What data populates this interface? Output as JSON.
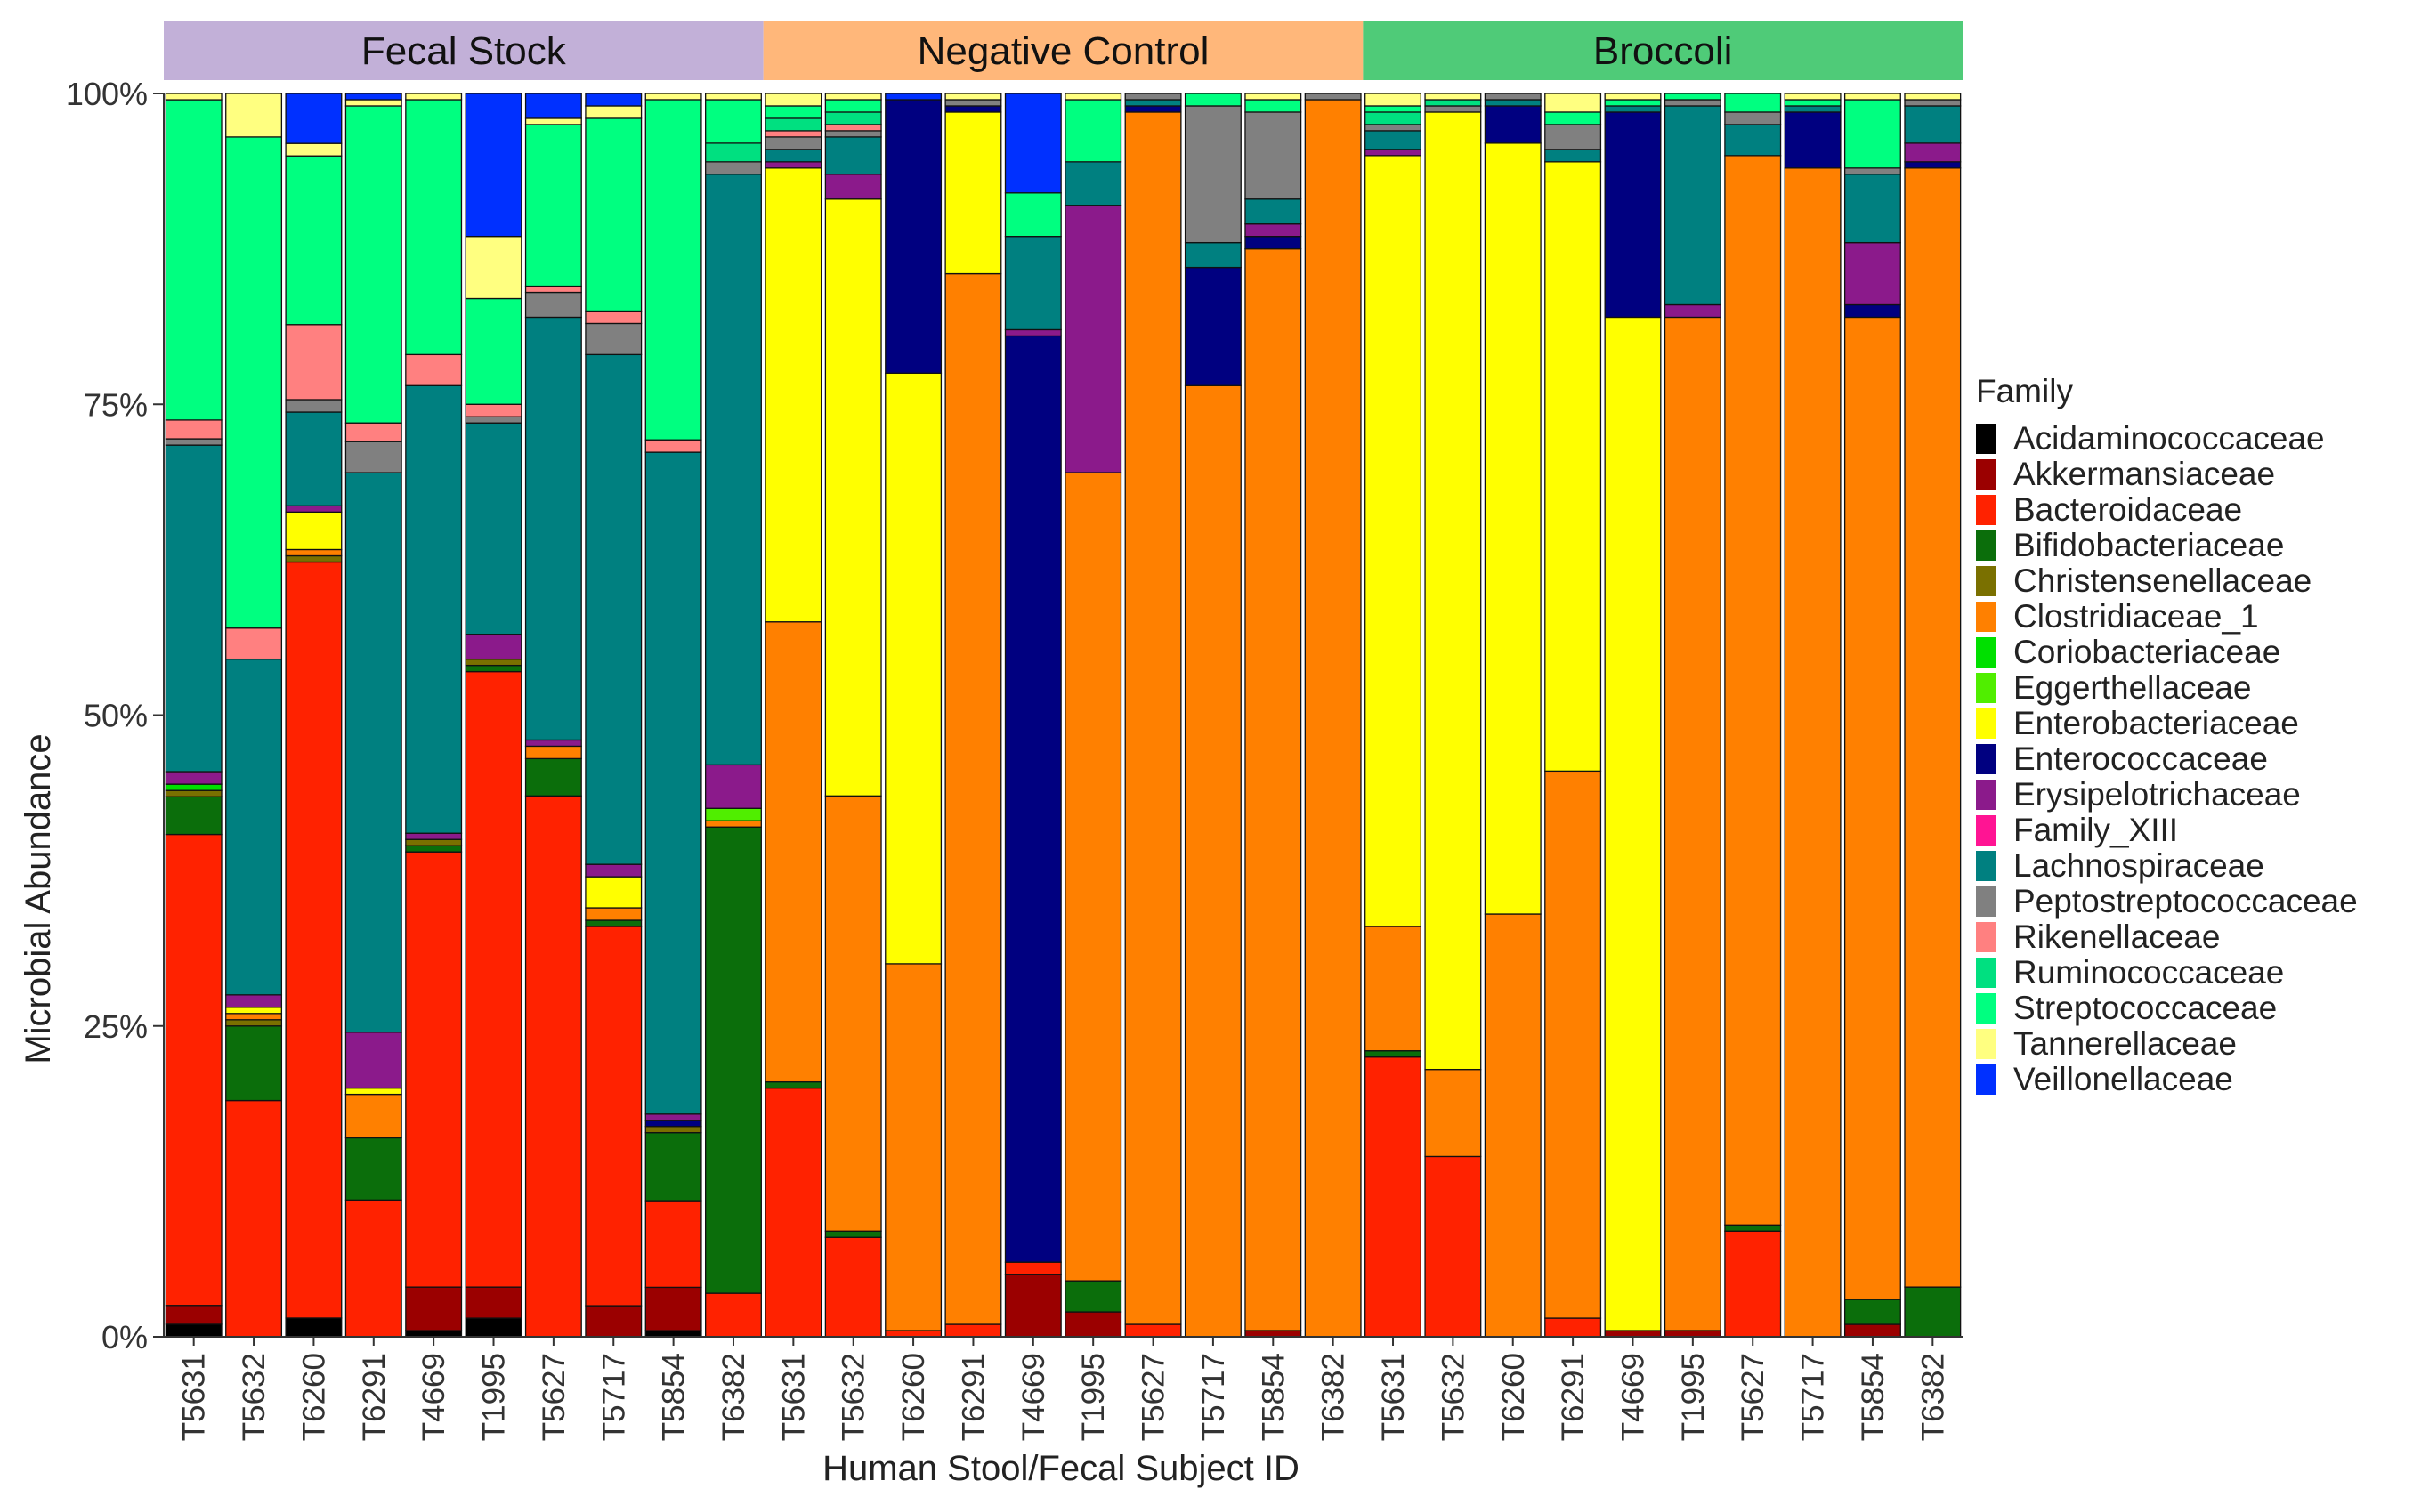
{
  "chart_data": {
    "type": "bar",
    "stacked": true,
    "normalized": true,
    "ylabel": "Microbial Abundance",
    "xlabel": "Human Stool/Fecal Subject ID",
    "yticks": [
      "0%",
      "25%",
      "50%",
      "75%",
      "100%"
    ],
    "ylim": [
      0,
      100
    ],
    "legend_title": "Family",
    "legend_position": "right",
    "families": [
      {
        "name": "Acidaminococcaceae",
        "color": "#000000"
      },
      {
        "name": "Akkermansiaceae",
        "color": "#9b0000"
      },
      {
        "name": "Bacteroidaceae",
        "color": "#ff2200"
      },
      {
        "name": "Bifidobacteriaceae",
        "color": "#0b6e0b"
      },
      {
        "name": "Christensenellaceae",
        "color": "#7a7000"
      },
      {
        "name": "Clostridiaceae_1",
        "color": "#ff8000"
      },
      {
        "name": "Coriobacteriaceae",
        "color": "#00e000"
      },
      {
        "name": "Eggerthellaceae",
        "color": "#50ee00"
      },
      {
        "name": "Enterobacteriaceae",
        "color": "#ffff00"
      },
      {
        "name": "Enterococcaceae",
        "color": "#000080"
      },
      {
        "name": "Erysipelotrichaceae",
        "color": "#8b1a8b"
      },
      {
        "name": "Family_XIII",
        "color": "#ff1493"
      },
      {
        "name": "Lachnospiraceae",
        "color": "#008080"
      },
      {
        "name": "Peptostreptococcaceae",
        "color": "#808080"
      },
      {
        "name": "Rikenellaceae",
        "color": "#ff8080"
      },
      {
        "name": "Ruminococcaceae",
        "color": "#00e080"
      },
      {
        "name": "Streptococcaceae",
        "color": "#00ff80"
      },
      {
        "name": "Tannerellaceae",
        "color": "#ffff80"
      },
      {
        "name": "Veillonellaceae",
        "color": "#0030ff"
      }
    ],
    "groups": [
      {
        "label": "Fecal Stock",
        "color": "#c2b0d8",
        "bars": [
          {
            "id": "T5631",
            "values": [
              1,
              1.5,
              37.5,
              3,
              0.5,
              0,
              0.5,
              0,
              0,
              0,
              1,
              0,
              26,
              0.5,
              1.5,
              0,
              25.5,
              0.5,
              0
            ]
          },
          {
            "id": "T5632",
            "values": [
              0,
              0,
              19,
              6,
              0.5,
              0.5,
              0,
              0,
              0.5,
              0,
              1,
              0,
              27,
              0,
              2.5,
              0,
              39.5,
              3.5,
              0
            ]
          },
          {
            "id": "T6260",
            "values": [
              1.5,
              0,
              60.5,
              0,
              0.5,
              0.5,
              0,
              0,
              3,
              0,
              0.5,
              0,
              7.5,
              1,
              6,
              0,
              13.5,
              1,
              4
            ]
          },
          {
            "id": "T6291",
            "values": [
              0,
              0,
              11,
              5,
              0,
              3.5,
              0,
              0,
              0.5,
              0,
              4.5,
              0,
              45,
              2.5,
              1.5,
              0,
              25.5,
              0.5,
              0.5
            ]
          },
          {
            "id": "T4669",
            "values": [
              0.5,
              3.5,
              35,
              0.5,
              0.5,
              0,
              0,
              0,
              0,
              0,
              0.5,
              0,
              36,
              0,
              2.5,
              0,
              20.5,
              0.5,
              0
            ]
          },
          {
            "id": "T1995",
            "values": [
              1.5,
              2.5,
              49.5,
              0.5,
              0.5,
              0,
              0,
              0,
              0,
              0,
              2,
              0,
              17,
              0.5,
              1,
              0,
              8.5,
              5,
              11.5
            ]
          },
          {
            "id": "T5627",
            "values": [
              0,
              0,
              43.5,
              3,
              0,
              1,
              0,
              0,
              0,
              0,
              0.5,
              0,
              34,
              2,
              0.5,
              0,
              13,
              0.5,
              2
            ]
          },
          {
            "id": "T5717",
            "values": [
              0,
              2.5,
              30.5,
              0.5,
              0,
              1,
              0,
              0,
              2.5,
              0,
              1,
              0,
              41,
              2.5,
              1,
              0,
              15.5,
              1,
              1
            ]
          },
          {
            "id": "T5854",
            "values": [
              0.5,
              3.5,
              7,
              5.5,
              0.5,
              0,
              0,
              0,
              0,
              0.5,
              0.5,
              0,
              53.5,
              0,
              1,
              0,
              27.5,
              0.5,
              0
            ]
          },
          {
            "id": "T6382",
            "values": [
              0,
              0,
              3.5,
              37.5,
              0,
              0.5,
              0,
              1,
              0,
              0,
              3.5,
              0,
              47.5,
              1,
              0,
              1.5,
              3.5,
              0.5,
              0
            ]
          }
        ]
      },
      {
        "label": "Negative Control",
        "color": "#ffb77a",
        "bars": [
          {
            "id": "T5631",
            "values": [
              0,
              0,
              20,
              0.5,
              0,
              37,
              0,
              0,
              36.5,
              0,
              0.5,
              0,
              1,
              1,
              0.5,
              1,
              1,
              1,
              0
            ]
          },
          {
            "id": "T5632",
            "values": [
              0,
              0,
              8,
              0.5,
              0,
              35,
              0,
              0,
              48,
              0,
              2,
              0,
              3,
              0.5,
              0.5,
              1,
              1,
              0.5,
              0
            ]
          },
          {
            "id": "T6260",
            "values": [
              0,
              0,
              0.5,
              0,
              0,
              29.5,
              0,
              0,
              47.5,
              22,
              0,
              0,
              0,
              0,
              0,
              0,
              0,
              0,
              0.5
            ]
          },
          {
            "id": "T6291",
            "values": [
              0,
              0,
              1,
              0,
              0,
              84.5,
              0,
              0,
              13,
              0.5,
              0,
              0,
              0,
              0.5,
              0,
              0,
              0,
              0.5,
              0
            ]
          },
          {
            "id": "T4669",
            "values": [
              0,
              5,
              1,
              0,
              0,
              0,
              0,
              0,
              0,
              74.5,
              0.5,
              0,
              7.5,
              0,
              0,
              0,
              3.5,
              0,
              8
            ]
          },
          {
            "id": "T1995",
            "values": [
              0,
              2,
              0,
              2.5,
              0,
              65,
              0,
              0,
              0,
              0,
              21.5,
              0,
              3.5,
              0,
              0,
              0,
              5,
              0.5,
              0
            ]
          },
          {
            "id": "T5627",
            "values": [
              0,
              0,
              1,
              0,
              0,
              97.5,
              0,
              0,
              0,
              0.5,
              0,
              0,
              0.5,
              0.5,
              0,
              0,
              0,
              0,
              0
            ]
          },
          {
            "id": "T5717",
            "values": [
              0,
              0,
              0,
              0,
              0,
              76.5,
              0,
              0,
              0,
              9.5,
              0,
              0,
              2,
              11,
              0,
              0,
              1,
              0,
              0
            ]
          },
          {
            "id": "T5854",
            "values": [
              0,
              0.5,
              0,
              0,
              0,
              87,
              0,
              0,
              0,
              1,
              1,
              0,
              2,
              7,
              0,
              0,
              1,
              0.5,
              0
            ]
          },
          {
            "id": "T6382",
            "values": [
              0,
              0,
              0,
              0,
              0,
              99.5,
              0,
              0,
              0,
              0,
              0,
              0,
              0,
              0.5,
              0,
              0,
              0,
              0,
              0
            ]
          }
        ]
      },
      {
        "label": "Broccoli",
        "color": "#4fcb78",
        "bars": [
          {
            "id": "T5631",
            "values": [
              0,
              0,
              22.5,
              0.5,
              0,
              10,
              0,
              0,
              62,
              0,
              0.5,
              0,
              1.5,
              0.5,
              0,
              1,
              0.5,
              1,
              0
            ]
          },
          {
            "id": "T5632",
            "values": [
              0,
              0,
              14.5,
              0,
              0,
              7,
              0,
              0,
              77,
              0,
              0,
              0,
              0,
              0.5,
              0,
              0.5,
              0,
              0.5,
              0
            ]
          },
          {
            "id": "T6260",
            "values": [
              0,
              0,
              0,
              0,
              0,
              34,
              0,
              0,
              62,
              3,
              0,
              0,
              0.5,
              0.5,
              0,
              0,
              0,
              0,
              0
            ]
          },
          {
            "id": "T6291",
            "values": [
              0,
              0,
              1.5,
              0,
              0,
              44,
              0,
              0,
              49,
              0,
              0,
              0,
              1,
              2,
              0,
              0,
              1,
              1.5,
              0
            ]
          },
          {
            "id": "T4669",
            "values": [
              0,
              0.5,
              0,
              0,
              0,
              0,
              0,
              0,
              81.5,
              16.5,
              0,
              0,
              0.5,
              0,
              0,
              0,
              0.5,
              0.5,
              0
            ]
          },
          {
            "id": "T1995",
            "values": [
              0,
              0.5,
              0,
              0,
              0,
              81.5,
              0,
              0,
              0,
              0,
              1,
              0,
              16,
              0.5,
              0,
              0,
              0.5,
              0,
              0
            ]
          },
          {
            "id": "T5627",
            "values": [
              0,
              0,
              8.5,
              0.5,
              0,
              86,
              0,
              0,
              0,
              0,
              0,
              0,
              2.5,
              1,
              0,
              0,
              1.5,
              0,
              0
            ]
          },
          {
            "id": "T5717",
            "values": [
              0,
              0,
              0,
              0,
              0,
              94,
              0,
              0,
              0,
              4.5,
              0,
              0,
              0.5,
              0,
              0,
              0,
              0.5,
              0.5,
              0
            ]
          },
          {
            "id": "T5854",
            "values": [
              0,
              1,
              0,
              2,
              0,
              79,
              0,
              0,
              0,
              1,
              5,
              0,
              5.5,
              0.5,
              0,
              0,
              5.5,
              0.5,
              0
            ]
          },
          {
            "id": "T6382",
            "values": [
              0,
              0,
              0,
              4,
              0,
              90,
              0,
              0,
              0,
              0.5,
              1.5,
              0,
              3,
              0.5,
              0,
              0,
              0,
              0.5,
              0
            ]
          }
        ]
      }
    ]
  }
}
